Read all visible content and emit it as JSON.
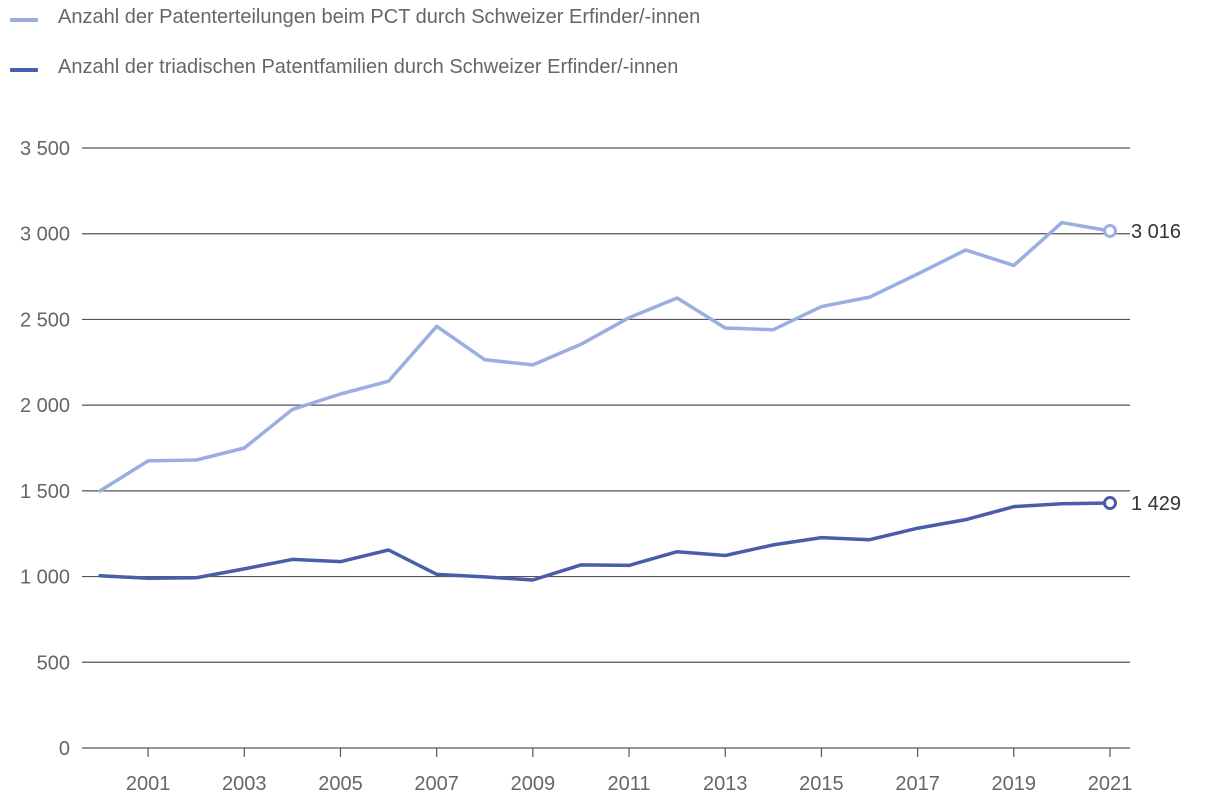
{
  "chart_data": {
    "type": "line",
    "title": "",
    "xlabel": "",
    "ylabel": "",
    "x": [
      2000,
      2001,
      2002,
      2003,
      2004,
      2005,
      2006,
      2007,
      2008,
      2009,
      2010,
      2011,
      2012,
      2013,
      2014,
      2015,
      2016,
      2017,
      2018,
      2019,
      2020,
      2021
    ],
    "xticks": [
      "2001",
      "2003",
      "2005",
      "2007",
      "2009",
      "2011",
      "2013",
      "2015",
      "2017",
      "2019",
      "2021"
    ],
    "yticks": [
      "0",
      "500",
      "1 000",
      "1 500",
      "2 000",
      "2 500",
      "3 000",
      "3 500"
    ],
    "ylim": [
      0,
      3500
    ],
    "grid": true,
    "legend_position": "top-left",
    "series": [
      {
        "name": "Anzahl der Patenterteilungen beim PCT durch Schweizer Erfinder/-innen",
        "color": "#9aaee2",
        "values": [
          1500,
          1675,
          1680,
          1750,
          1975,
          2065,
          2140,
          2460,
          2265,
          2235,
          2355,
          2510,
          2625,
          2450,
          2440,
          2575,
          2630,
          2765,
          2905,
          2815,
          3065,
          3016
        ],
        "end_label": "3 016"
      },
      {
        "name": "Anzahl der triadischen Patentfamilien durch Schweizer Erfinder/-innen",
        "color": "#4a5ea8",
        "values": [
          1005,
          990,
          993,
          1045,
          1100,
          1087,
          1155,
          1013,
          998,
          980,
          1068,
          1065,
          1145,
          1123,
          1185,
          1227,
          1215,
          1282,
          1332,
          1408,
          1425,
          1429
        ],
        "end_label": "1 429"
      }
    ]
  },
  "colors": {
    "grid": "#555555",
    "axis_text": "#666666",
    "value_label": "#333333"
  }
}
